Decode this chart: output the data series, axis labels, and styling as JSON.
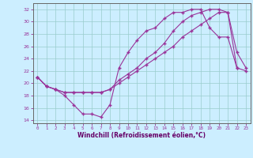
{
  "bg_color": "#cceeff",
  "grid_color": "#99cccc",
  "line_color": "#993399",
  "spine_color": "#666666",
  "label_color": "#660066",
  "xlabel": "Windchill (Refroidissement éolien,°C)",
  "xlim": [
    -0.5,
    23.5
  ],
  "ylim": [
    13.5,
    33.0
  ],
  "yticks": [
    14,
    16,
    18,
    20,
    22,
    24,
    26,
    28,
    30,
    32
  ],
  "xticks": [
    0,
    1,
    2,
    3,
    4,
    5,
    6,
    7,
    8,
    9,
    10,
    11,
    12,
    13,
    14,
    15,
    16,
    17,
    18,
    19,
    20,
    21,
    22,
    23
  ],
  "line1_x": [
    0,
    1,
    2,
    3,
    4,
    5,
    6,
    7,
    8,
    9,
    10,
    11,
    12,
    13,
    14,
    15,
    16,
    17,
    18,
    19,
    20,
    21,
    22
  ],
  "line1_y": [
    21.0,
    19.5,
    19.0,
    18.0,
    16.5,
    15.0,
    15.0,
    14.5,
    16.5,
    22.5,
    25.0,
    27.0,
    28.5,
    29.0,
    30.5,
    31.5,
    31.5,
    32.0,
    32.0,
    29.0,
    27.5,
    27.5,
    22.5
  ],
  "line2_x": [
    0,
    1,
    2,
    3,
    4,
    5,
    6,
    7,
    8,
    9,
    10,
    11,
    12,
    13,
    14,
    15,
    16,
    17,
    18,
    19,
    20,
    21,
    22,
    23
  ],
  "line2_y": [
    21.0,
    19.5,
    19.0,
    18.5,
    18.5,
    18.5,
    18.5,
    18.5,
    19.0,
    20.0,
    21.0,
    22.0,
    23.0,
    24.0,
    25.0,
    26.0,
    27.5,
    28.5,
    29.5,
    30.5,
    31.5,
    31.5,
    22.5,
    22.0
  ],
  "line3_x": [
    0,
    1,
    2,
    3,
    4,
    5,
    6,
    7,
    8,
    9,
    10,
    11,
    12,
    13,
    14,
    15,
    16,
    17,
    18,
    19,
    20,
    21,
    22,
    23
  ],
  "line3_y": [
    21.0,
    19.5,
    19.0,
    18.5,
    18.5,
    18.5,
    18.5,
    18.5,
    19.0,
    20.5,
    21.5,
    22.5,
    24.0,
    25.0,
    26.5,
    28.5,
    30.0,
    31.0,
    31.5,
    32.0,
    32.0,
    31.5,
    25.0,
    22.5
  ]
}
